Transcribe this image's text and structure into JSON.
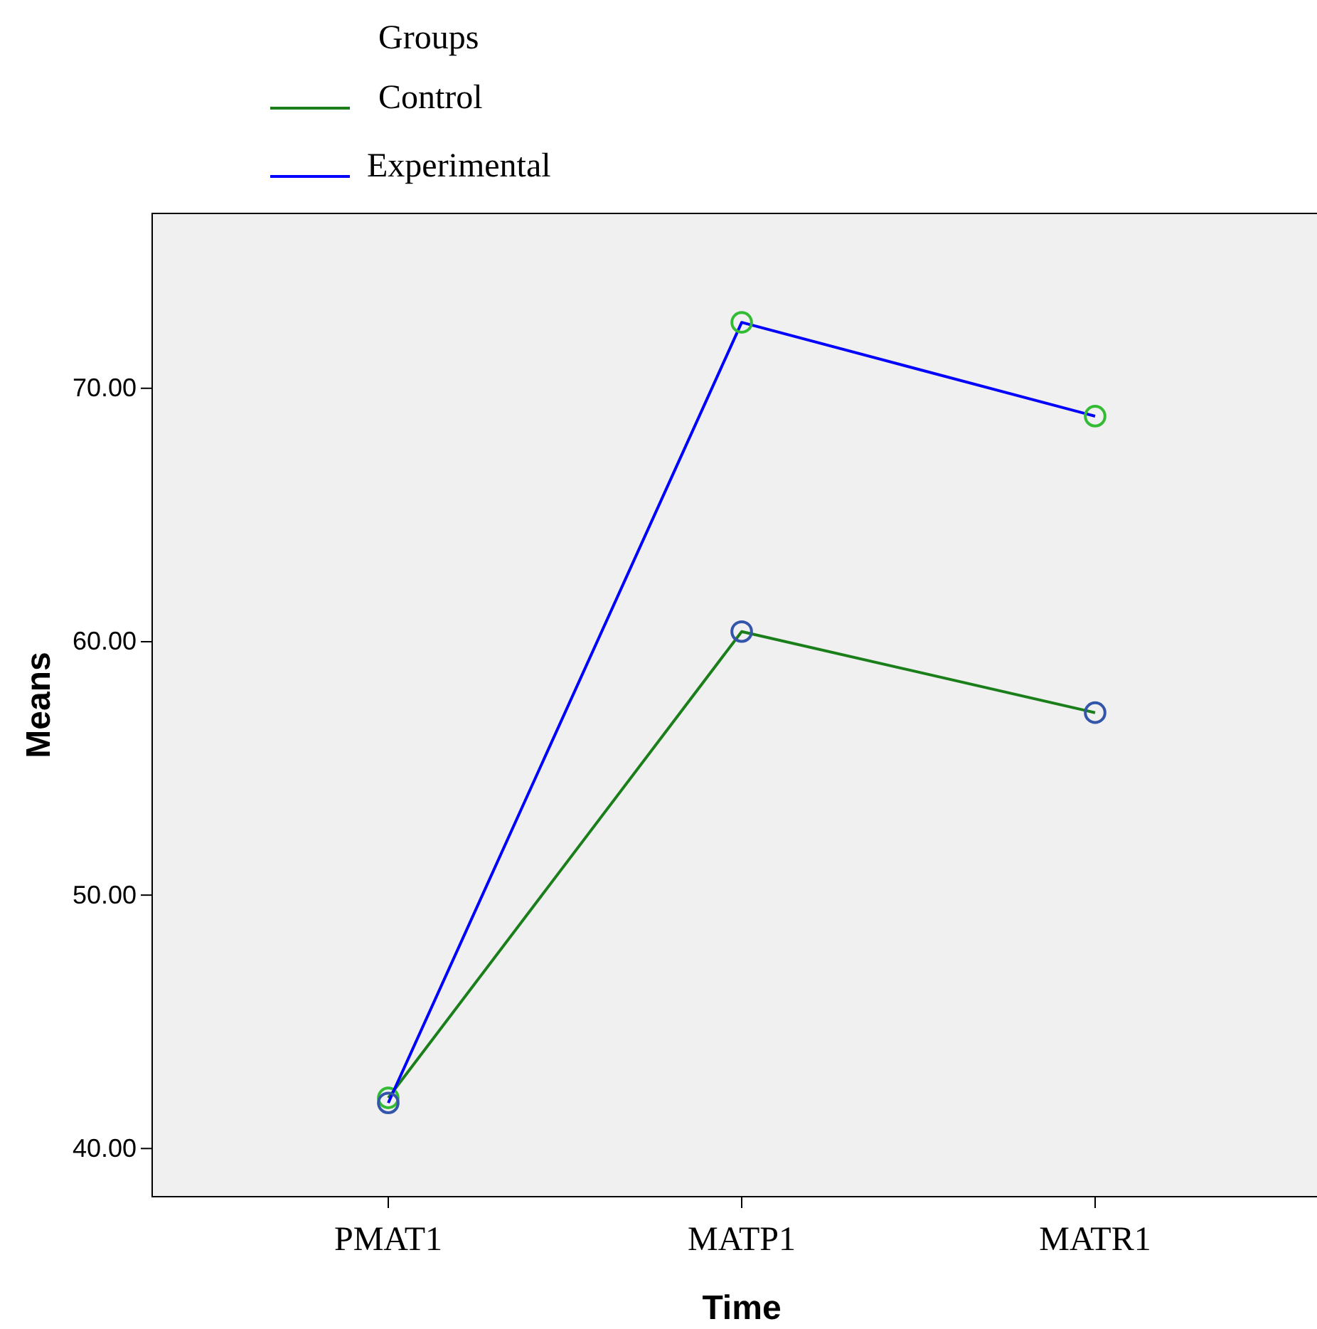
{
  "chart_data": {
    "type": "line",
    "xlabel": "Time",
    "ylabel": "Means",
    "legend_title": "Groups",
    "legend": "top",
    "marker": "circle",
    "grid": false,
    "categories": [
      "PMAT1",
      "MATP1",
      "MATR1"
    ],
    "ylim": [
      38.1,
      76.9
    ],
    "yticks": [
      {
        "value": 40,
        "label": "40.00"
      },
      {
        "value": 50,
        "label": "50.00"
      },
      {
        "value": 60,
        "label": "60.00"
      },
      {
        "value": 70,
        "label": "70.00"
      }
    ],
    "series": [
      {
        "name": "Control",
        "color": "#1a7f1a",
        "colors": [
          "#33bb33",
          "#3355aa",
          "#3355aa"
        ],
        "values": [
          42.0,
          60.4,
          57.2
        ]
      },
      {
        "name": "Experimental",
        "color": "#0000ff",
        "colors": [
          "#3355aa",
          "#33bb33",
          "#33bb33"
        ],
        "values": [
          41.8,
          72.6,
          68.9
        ]
      }
    ]
  }
}
